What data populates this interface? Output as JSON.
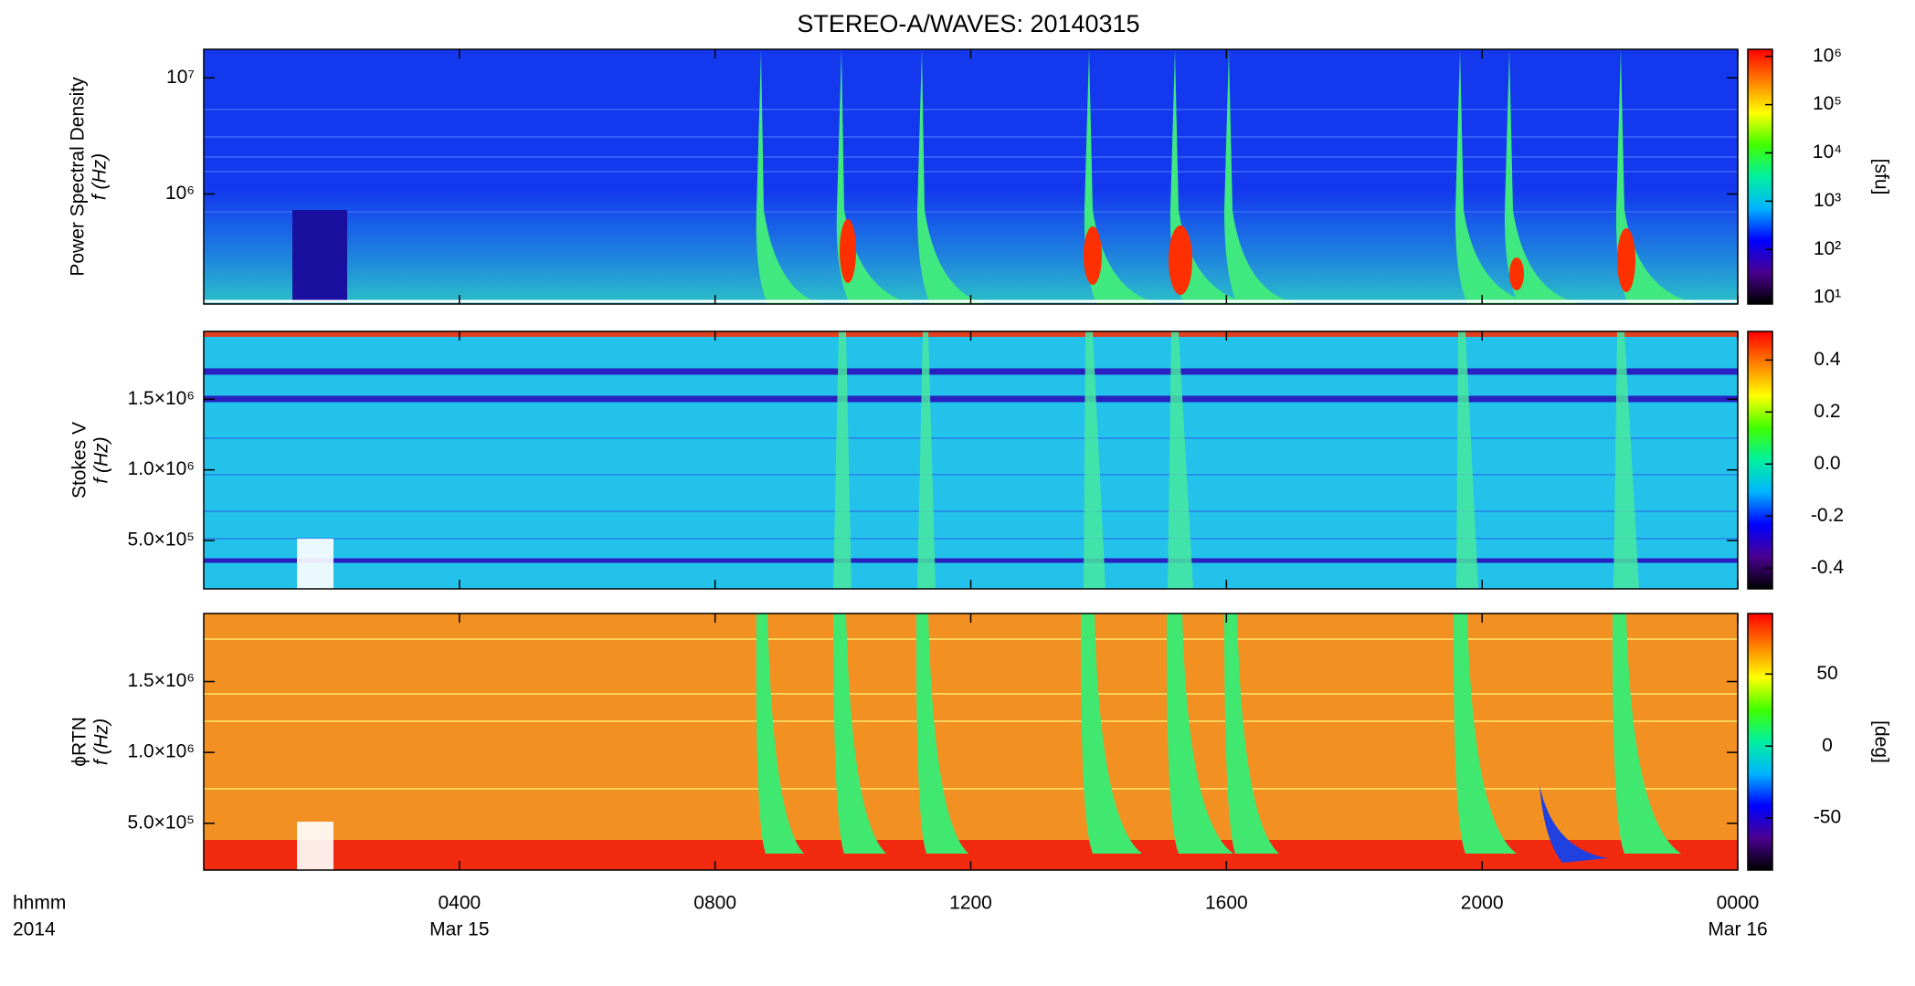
{
  "title": "STEREO-A/WAVES: 20140315",
  "x_axis": {
    "xlim": [
      0,
      24
    ],
    "xticks": [
      {
        "value": 4,
        "label": "0400"
      },
      {
        "value": 8,
        "label": "0800"
      },
      {
        "value": 12,
        "label": "1200"
      },
      {
        "value": 16,
        "label": "1600"
      },
      {
        "value": 20,
        "label": "2000"
      },
      {
        "value": 24,
        "label": "0000"
      }
    ],
    "date_labels": [
      {
        "value": 4,
        "label": "Mar 15"
      },
      {
        "value": 24,
        "label": "Mar 16"
      }
    ],
    "unit_label": "hhmm",
    "year_label": "2014"
  },
  "colormap": [
    "#000000",
    "#4a0090",
    "#0000ff",
    "#00b4ff",
    "#00f0a0",
    "#40ff00",
    "#ffff00",
    "#ff8000",
    "#ff0000"
  ],
  "chart_data": [
    {
      "type": "spectrogram",
      "ylabel": [
        "Power Spectral Density",
        "f (Hz)"
      ],
      "log_y": true,
      "ylim": [
        113000,
        17600000
      ],
      "yticks": [
        {
          "value": 1000000,
          "label": "10⁶"
        },
        {
          "value": 10000000,
          "label": "10⁷"
        }
      ],
      "colorbar": {
        "label": "[sfu]",
        "log": true,
        "lim": [
          7.4,
          1400000
        ],
        "ticks": [
          {
            "value": 10,
            "label": "10¹"
          },
          {
            "value": 100,
            "label": "10²"
          },
          {
            "value": 1000,
            "label": "10³"
          },
          {
            "value": 10000,
            "label": "10⁴"
          },
          {
            "value": 100000,
            "label": "10⁵"
          },
          {
            "value": 1000000,
            "label": "10⁶"
          }
        ]
      }
    },
    {
      "type": "spectrogram",
      "ylabel": [
        "Stokes V",
        "f (Hz)"
      ],
      "log_y": false,
      "ylim": [
        158000,
        1980000
      ],
      "yticks": [
        {
          "value": 500000,
          "label": "5.0×10⁵"
        },
        {
          "value": 1000000,
          "label": "1.0×10⁶"
        },
        {
          "value": 1500000,
          "label": "1.5×10⁶"
        }
      ],
      "colorbar": {
        "log": false,
        "lim": [
          -0.48,
          0.51
        ],
        "ticks": [
          -0.4,
          -0.2,
          {
            "value": 0,
            "label": "0.0"
          },
          0.2,
          0.4
        ]
      }
    },
    {
      "type": "spectrogram",
      "ylabel": [
        "ϕRTN",
        "f (Hz)"
      ],
      "log_y": false,
      "ylim": [
        170000,
        1980000
      ],
      "yticks": [
        {
          "value": 500000,
          "label": "5.0×10⁵"
        },
        {
          "value": 1000000,
          "label": "1.0×10⁶"
        },
        {
          "value": 1500000,
          "label": "1.5×10⁶"
        }
      ],
      "colorbar": {
        "label": "[deg]",
        "log": false,
        "lim": [
          -86,
          92
        ],
        "ticks": [
          -50,
          0,
          50
        ]
      }
    }
  ]
}
